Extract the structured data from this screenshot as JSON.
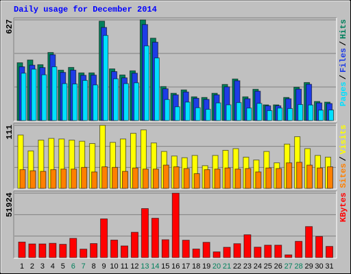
{
  "chart_data": [
    {
      "type": "bar",
      "title": "Daily usage for December 2014",
      "legend_separator": "/",
      "ylim": [
        0,
        627
      ],
      "yticks": [
        627
      ],
      "series": [
        {
          "name": "Hits",
          "color": "#00805c",
          "values": [
            360,
            377,
            348,
            424,
            314,
            331,
            297,
            297,
            619,
            322,
            284,
            310,
            627,
            513,
            212,
            170,
            191,
            148,
            144,
            170,
            225,
            259,
            148,
            195,
            98,
            98,
            144,
            208,
            237,
            119,
            115
          ]
        },
        {
          "name": "Files",
          "color": "#1e3ce6",
          "values": [
            335,
            345,
            330,
            410,
            300,
            314,
            282,
            283,
            580,
            305,
            266,
            295,
            598,
            488,
            198,
            160,
            178,
            139,
            132,
            160,
            210,
            248,
            136,
            183,
            92,
            92,
            136,
            196,
            226,
            110,
            106
          ]
        },
        {
          "name": "Pages",
          "color": "#00e0ff",
          "values": [
            295,
            320,
            285,
            335,
            230,
            228,
            250,
            222,
            530,
            260,
            230,
            235,
            465,
            390,
            131,
            86,
            115,
            80,
            70,
            110,
            98,
            112,
            78,
            107,
            62,
            78,
            75,
            100,
            97,
            65,
            66
          ]
        }
      ]
    },
    {
      "type": "bar",
      "legend_separator": "/",
      "ylim": [
        0,
        111
      ],
      "yticks": [
        111
      ],
      "series": [
        {
          "name": "Visits",
          "color": "#ffff00",
          "values": [
            94,
            66,
            85,
            88,
            87,
            85,
            83,
            79,
            111,
            81,
            87,
            97,
            103,
            80,
            65,
            57,
            54,
            58,
            40,
            58,
            67,
            70,
            55,
            50,
            65,
            45,
            78,
            91,
            70,
            58,
            55
          ]
        },
        {
          "name": "Sites",
          "color": "#ff8000",
          "values": [
            33,
            31,
            30,
            33,
            34,
            34,
            37,
            29,
            38,
            37,
            30,
            36,
            34,
            34,
            41,
            38,
            35,
            26,
            33,
            34,
            36,
            34,
            35,
            29,
            36,
            35,
            45,
            46,
            41,
            36,
            38
          ]
        }
      ]
    },
    {
      "type": "bar",
      "ylim": [
        0,
        51924
      ],
      "yticks": [
        51924
      ],
      "categories": [
        "1",
        "2",
        "3",
        "4",
        "5",
        "6",
        "7",
        "8",
        "9",
        "10",
        "11",
        "12",
        "13",
        "14",
        "15",
        "16",
        "17",
        "18",
        "19",
        "20",
        "21",
        "22",
        "23",
        "24",
        "25",
        "26",
        "27",
        "28",
        "29",
        "30",
        "31"
      ],
      "weekend": [
        false,
        false,
        false,
        false,
        false,
        true,
        true,
        false,
        false,
        false,
        false,
        false,
        true,
        true,
        false,
        false,
        false,
        false,
        false,
        true,
        true,
        false,
        false,
        false,
        false,
        false,
        true,
        true,
        false,
        false,
        false
      ],
      "label_color": "#000000",
      "weekend_label_color": "#00805c",
      "series": [
        {
          "name": "KBytes",
          "color": "#ff0000",
          "values": [
            12500,
            11000,
            11000,
            11500,
            10700,
            15500,
            6800,
            11300,
            31200,
            14100,
            9400,
            20400,
            39500,
            31700,
            14400,
            51924,
            14000,
            6900,
            12300,
            4600,
            8300,
            11200,
            18400,
            8400,
            10000,
            10000,
            2200,
            13100,
            25000,
            17000,
            9000
          ]
        }
      ]
    }
  ]
}
